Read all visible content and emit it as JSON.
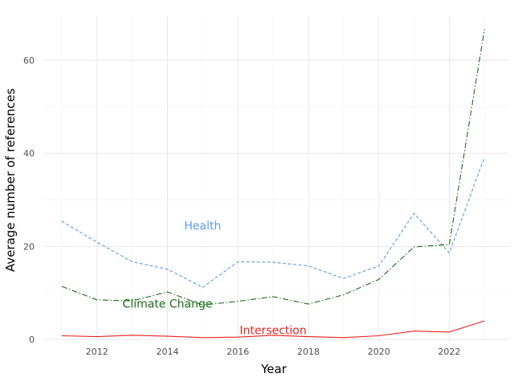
{
  "chart_data": {
    "type": "line",
    "xlabel": "Year",
    "ylabel": "Average number of references",
    "xlim": [
      2010.5,
      2023.7
    ],
    "ylim": [
      -0.5,
      69.5
    ],
    "x_ticks": [
      2012,
      2014,
      2016,
      2018,
      2020,
      2022
    ],
    "y_ticks": [
      0,
      20,
      40,
      60
    ],
    "grid": true,
    "legend": "none",
    "x": [
      2011,
      2012,
      2013,
      2014,
      2015,
      2016,
      2017,
      2018,
      2019,
      2020,
      2021,
      2022,
      2023
    ],
    "series": [
      {
        "name": "Health",
        "color": "#5b9bea",
        "dash": "dashed",
        "values": [
          25.4,
          20.9,
          16.7,
          15.1,
          11.2,
          16.7,
          16.6,
          15.8,
          13.1,
          15.8,
          27.1,
          18.6,
          39.2
        ],
        "label_anchor": {
          "x": 2015.0,
          "y": 24.5
        }
      },
      {
        "name": "Climate Change",
        "color": "#1a6e1a",
        "dash": "dashdot",
        "values": [
          11.4,
          8.5,
          8.3,
          10.2,
          7.4,
          8.2,
          9.2,
          7.6,
          9.6,
          12.9,
          19.9,
          20.4,
          66.7
        ],
        "label_anchor": {
          "x": 2014.0,
          "y": 7.7
        }
      },
      {
        "name": "Intersection",
        "color": "#e8221f",
        "dash": "solid",
        "values": [
          0.8,
          0.6,
          0.9,
          0.7,
          0.4,
          0.5,
          0.9,
          0.6,
          0.4,
          0.8,
          1.8,
          1.6,
          4.0
        ],
        "label_anchor": {
          "x": 2017.0,
          "y": 2.0
        }
      }
    ]
  }
}
